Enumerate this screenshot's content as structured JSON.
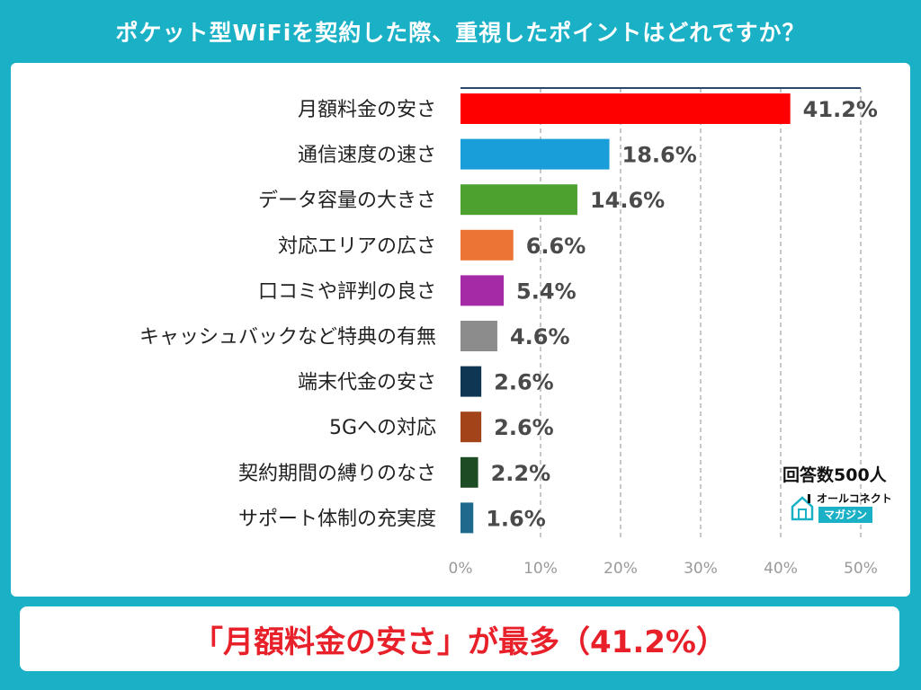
{
  "title": "ポケット型WiFiを契約した際、重視したポイントはどれですか？",
  "sample_note": "回答数500人",
  "logo": {
    "icon": "house-icon",
    "top_text": "オールコネクト",
    "bottom_text": "マガジン"
  },
  "footer": "「月額料金の安さ」が最多（41.2%）",
  "chart_data": {
    "type": "bar",
    "orientation": "horizontal",
    "title": "ポケット型WiFiを契約した際、重視したポイントはどれですか？",
    "categories": [
      "月額料金の安さ",
      "通信速度の速さ",
      "データ容量の大きさ",
      "対応エリアの広さ",
      "口コミや評判の良さ",
      "キャッシュバックなど特典の有無",
      "端末代金の安さ",
      "5Gへの対応",
      "契約期間の縛りのなさ",
      "サポート体制の充実度"
    ],
    "values": [
      41.2,
      18.6,
      14.6,
      6.6,
      5.4,
      4.6,
      2.6,
      2.6,
      2.2,
      1.6
    ],
    "value_labels": [
      "41.2%",
      "18.6%",
      "14.6%",
      "6.6%",
      "5.4%",
      "4.6%",
      "2.6%",
      "2.6%",
      "2.2%",
      "1.6%"
    ],
    "colors": [
      "#fe0000",
      "#1a9ed9",
      "#4da12f",
      "#ec7535",
      "#a52aa6",
      "#8c8c8c",
      "#0e3754",
      "#a2431a",
      "#1d4b24",
      "#1e6a8c"
    ],
    "xlim": [
      0,
      50
    ],
    "ticks": [
      0,
      10,
      20,
      30,
      40,
      50
    ],
    "tick_labels": [
      "0%",
      "10%",
      "20%",
      "30%",
      "40%",
      "50%"
    ],
    "grid": true,
    "xlabel": "",
    "ylabel": ""
  }
}
